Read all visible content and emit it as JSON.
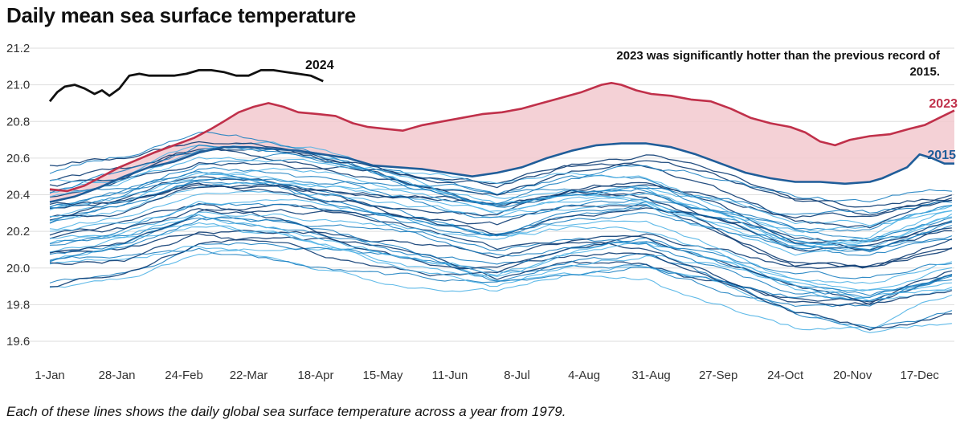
{
  "title": "Daily mean sea surface temperature",
  "caption": "Each of these lines shows the daily global sea surface temperature across a year from 1979.",
  "chart_data": {
    "type": "line",
    "ylim": [
      19.5,
      21.25
    ],
    "yticks": [
      "21.2",
      "21.0",
      "20.8",
      "20.6",
      "20.4",
      "20.2",
      "20.0",
      "19.8",
      "19.6"
    ],
    "xticks": [
      {
        "label": "1-Jan",
        "day": 0
      },
      {
        "label": "28-Jan",
        "day": 27
      },
      {
        "label": "24-Feb",
        "day": 54
      },
      {
        "label": "22-Mar",
        "day": 80
      },
      {
        "label": "18-Apr",
        "day": 107
      },
      {
        "label": "15-May",
        "day": 134
      },
      {
        "label": "11-Jun",
        "day": 161
      },
      {
        "label": "8-Jul",
        "day": 188
      },
      {
        "label": "4-Aug",
        "day": 215
      },
      {
        "label": "31-Aug",
        "day": 242
      },
      {
        "label": "27-Sep",
        "day": 269
      },
      {
        "label": "24-Oct",
        "day": 296
      },
      {
        "label": "20-Nov",
        "day": 323
      },
      {
        "label": "17-Dec",
        "day": 350
      }
    ],
    "grid": true,
    "annotation": {
      "line1": "2023 was significantly hotter than the previous record of",
      "line2": "2015."
    },
    "colors": {
      "y2024": "#111111",
      "y2023": "#c0304a",
      "y2015": "#1f5d99",
      "shade": "#f2c9cf",
      "historic_light": "#4fb3e6",
      "historic_mid": "#1a7ec0",
      "historic_dark": "#0d3c73"
    },
    "series": [
      {
        "name": "2024",
        "x": [
          0,
          3,
          6,
          10,
          14,
          18,
          21,
          24,
          28,
          32,
          36,
          40,
          45,
          50,
          55,
          60,
          65,
          70,
          75,
          80,
          85,
          90,
          95,
          100,
          105,
          110
        ],
        "y": [
          20.91,
          20.96,
          20.99,
          21.0,
          20.98,
          20.95,
          20.97,
          20.94,
          20.98,
          21.05,
          21.06,
          21.05,
          21.05,
          21.05,
          21.06,
          21.08,
          21.08,
          21.07,
          21.05,
          21.05,
          21.08,
          21.08,
          21.07,
          21.06,
          21.05,
          21.02
        ]
      },
      {
        "name": "2023",
        "x": [
          0,
          7,
          14,
          21,
          28,
          35,
          42,
          50,
          58,
          65,
          70,
          76,
          82,
          88,
          94,
          100,
          108,
          115,
          122,
          128,
          135,
          142,
          150,
          158,
          166,
          174,
          182,
          190,
          198,
          206,
          214,
          222,
          226,
          230,
          236,
          242,
          250,
          258,
          266,
          274,
          282,
          290,
          298,
          304,
          310,
          316,
          322,
          330,
          338,
          346,
          352,
          358,
          364
        ],
        "y": [
          20.43,
          20.42,
          20.45,
          20.5,
          20.55,
          20.59,
          20.63,
          20.67,
          20.71,
          20.76,
          20.8,
          20.85,
          20.88,
          20.9,
          20.88,
          20.85,
          20.84,
          20.83,
          20.79,
          20.77,
          20.76,
          20.75,
          20.78,
          20.8,
          20.82,
          20.84,
          20.85,
          20.87,
          20.9,
          20.93,
          20.96,
          21.0,
          21.01,
          21.0,
          20.97,
          20.95,
          20.94,
          20.92,
          20.91,
          20.87,
          20.82,
          20.79,
          20.77,
          20.74,
          20.69,
          20.67,
          20.7,
          20.72,
          20.73,
          20.76,
          20.78,
          20.82,
          20.86
        ]
      },
      {
        "name": "2015",
        "x": [
          0,
          10,
          20,
          30,
          40,
          50,
          60,
          70,
          80,
          90,
          100,
          110,
          120,
          130,
          140,
          150,
          160,
          170,
          180,
          190,
          200,
          210,
          220,
          230,
          240,
          250,
          260,
          270,
          280,
          290,
          300,
          310,
          320,
          330,
          335,
          340,
          345,
          350,
          355,
          360,
          364
        ],
        "y": [
          20.36,
          20.39,
          20.44,
          20.5,
          20.55,
          20.58,
          20.63,
          20.66,
          20.66,
          20.65,
          20.64,
          20.62,
          20.6,
          20.56,
          20.55,
          20.54,
          20.52,
          20.5,
          20.52,
          20.55,
          20.6,
          20.64,
          20.67,
          20.68,
          20.68,
          20.66,
          20.62,
          20.57,
          20.52,
          20.49,
          20.47,
          20.47,
          20.46,
          20.47,
          20.49,
          20.52,
          20.55,
          20.62,
          20.6,
          20.57,
          20.57
        ]
      }
    ],
    "historic": {
      "count": 42,
      "x": [
        0,
        30,
        60,
        90,
        120,
        150,
        180,
        210,
        240,
        270,
        300,
        330,
        364
      ],
      "mean": [
        20.24,
        20.3,
        20.42,
        20.4,
        20.34,
        20.26,
        20.2,
        20.28,
        20.3,
        20.18,
        20.05,
        20.02,
        20.14
      ],
      "spread_low": -0.3,
      "spread_high": 0.28
    }
  }
}
